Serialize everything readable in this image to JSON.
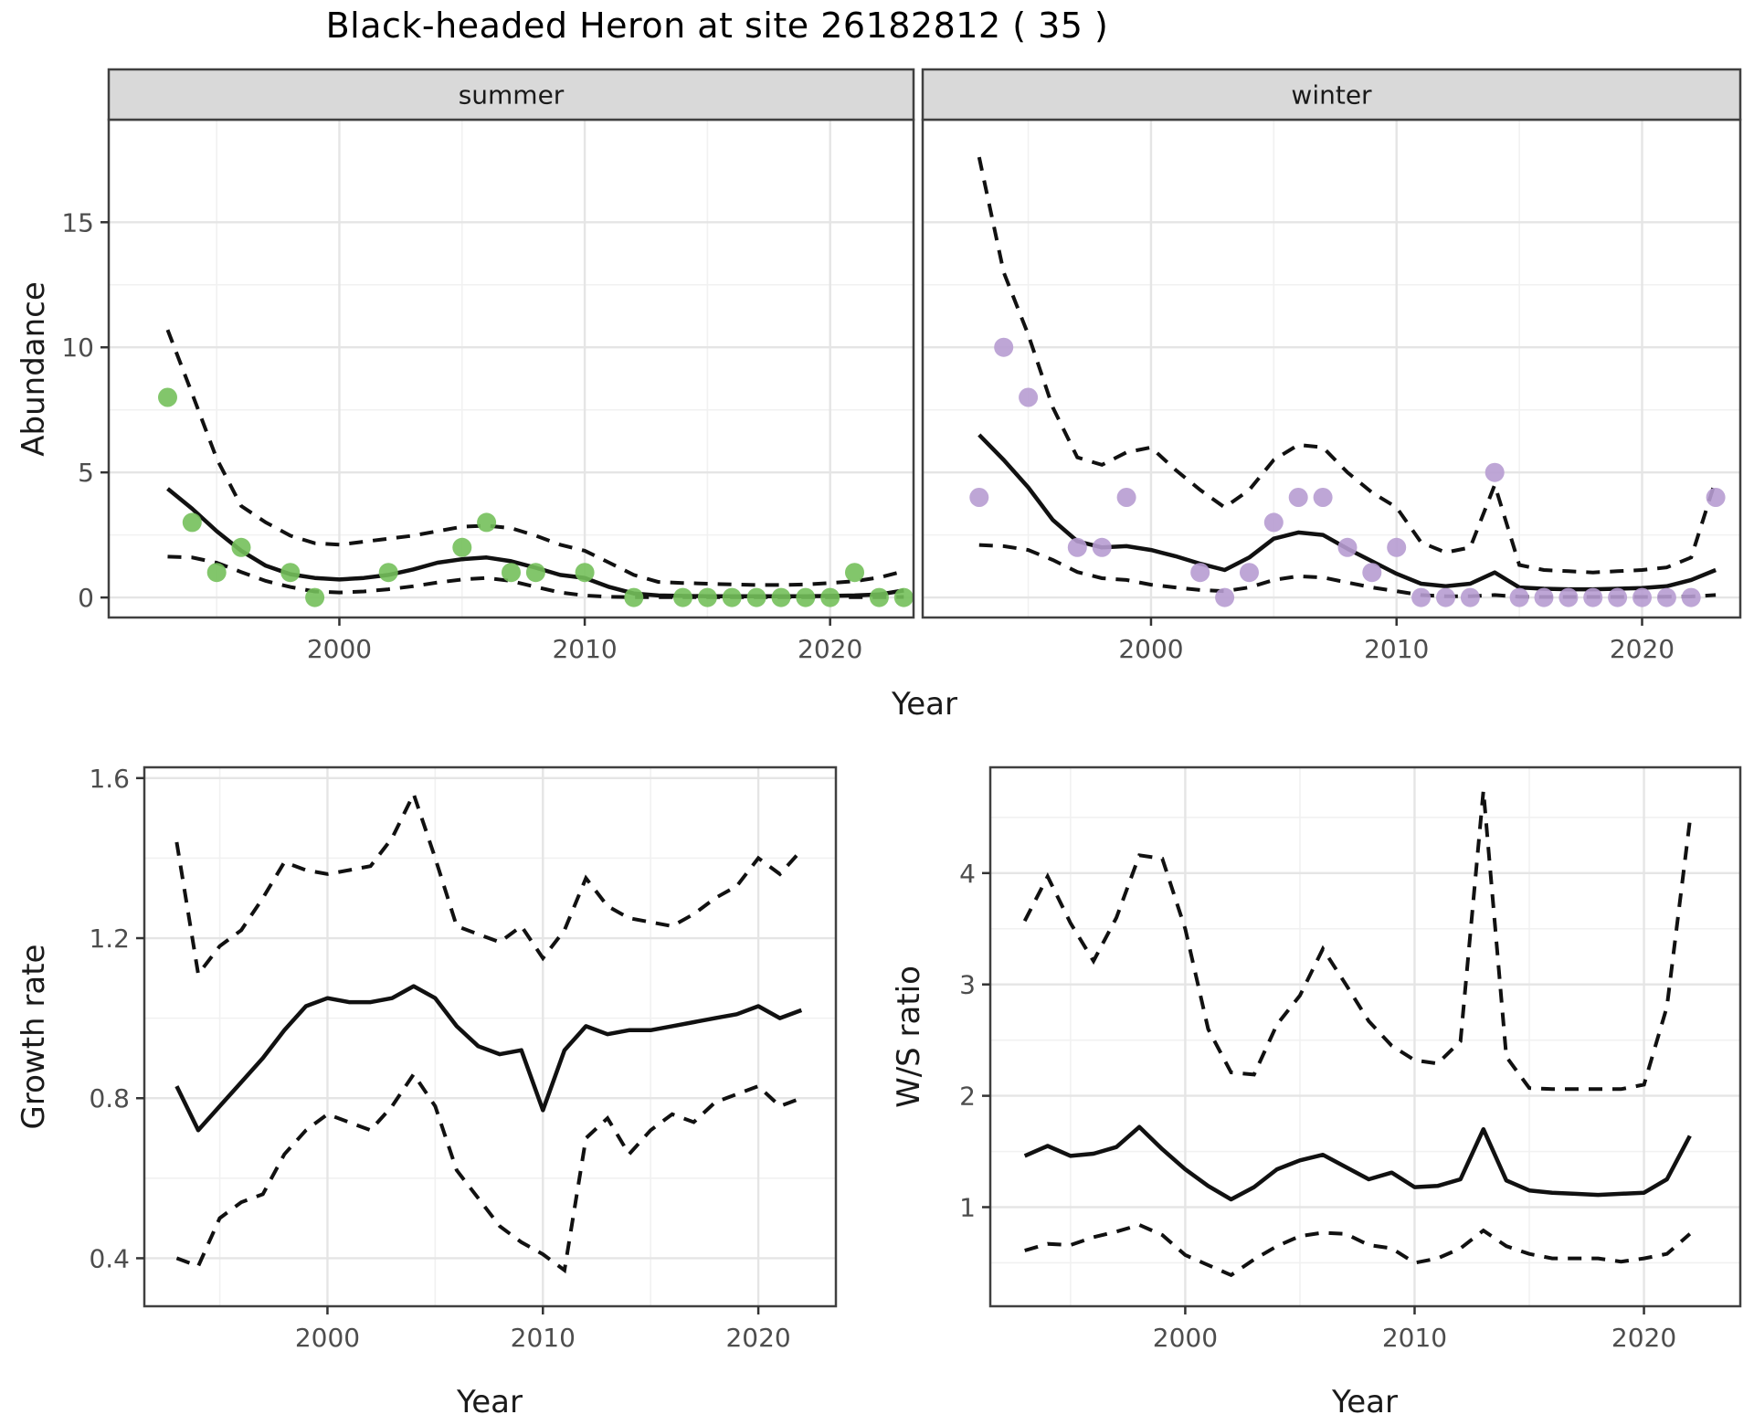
{
  "title": "Black-headed Heron at site 26182812 ( 35 )",
  "colors": {
    "line": "#111111",
    "grid_major": "#e5e5e5",
    "grid_minor": "#f1f1f1",
    "panel_border": "#404040",
    "strip_fill": "#d9d9d9",
    "axis_text": "#4d4d4d",
    "title_text": "#000000",
    "summer_point": "#74c05b",
    "winter_point": "#b79cd2"
  },
  "chart_data": [
    {
      "id": "abundance-summer",
      "type": "line",
      "facet_label": "summer",
      "xlabel": "Year",
      "ylabel": "Abundance",
      "xlim": [
        1990.6,
        2023.4
      ],
      "ylim": [
        -0.8,
        19.1
      ],
      "x_ticks": [
        2000,
        2010,
        2020
      ],
      "x_minor": [
        1995,
        2005,
        2015
      ],
      "y_ticks": [
        0,
        5,
        10,
        15
      ],
      "y_minor": [
        2.5,
        7.5,
        12.5
      ],
      "point_color": "#74c05b",
      "x": [
        1993,
        1994,
        1995,
        1996,
        1997,
        1998,
        1999,
        2000,
        2001,
        2002,
        2003,
        2004,
        2005,
        2006,
        2007,
        2008,
        2009,
        2010,
        2011,
        2012,
        2013,
        2014,
        2015,
        2016,
        2017,
        2018,
        2019,
        2020,
        2021,
        2022,
        2023
      ],
      "fit": [
        4.35,
        3.55,
        2.65,
        1.87,
        1.27,
        0.93,
        0.78,
        0.72,
        0.78,
        0.9,
        1.12,
        1.39,
        1.53,
        1.6,
        1.45,
        1.19,
        0.9,
        0.78,
        0.42,
        0.16,
        0.08,
        0.06,
        0.05,
        0.05,
        0.05,
        0.05,
        0.05,
        0.06,
        0.08,
        0.12,
        0.28
      ],
      "ci_upper": [
        10.7,
        8.15,
        5.55,
        3.66,
        3.0,
        2.47,
        2.17,
        2.11,
        2.23,
        2.35,
        2.47,
        2.65,
        2.83,
        2.87,
        2.77,
        2.47,
        2.11,
        1.87,
        1.39,
        0.9,
        0.62,
        0.58,
        0.55,
        0.52,
        0.5,
        0.5,
        0.52,
        0.58,
        0.65,
        0.8,
        1.05
      ],
      "ci_lower": [
        1.63,
        1.6,
        1.39,
        1.02,
        0.66,
        0.42,
        0.24,
        0.2,
        0.24,
        0.33,
        0.45,
        0.6,
        0.72,
        0.78,
        0.66,
        0.42,
        0.2,
        0.08,
        0.03,
        0.01,
        0.01,
        0.01,
        0.01,
        0.01,
        0.01,
        0.01,
        0.01,
        0.01,
        0.01,
        0.01,
        0.02
      ],
      "observed": [
        8,
        3,
        1,
        2,
        null,
        1,
        0,
        null,
        null,
        1,
        null,
        null,
        2,
        3,
        1,
        1,
        null,
        1,
        null,
        0,
        null,
        0,
        0,
        0,
        0,
        0,
        0,
        0,
        1,
        0,
        0
      ]
    },
    {
      "id": "abundance-winter",
      "type": "line",
      "facet_label": "winter",
      "xlabel": "Year",
      "ylabel": "Abundance",
      "xlim": [
        1990.7,
        2024.0
      ],
      "ylim": [
        -0.8,
        19.1
      ],
      "x_ticks": [
        2000,
        2010,
        2020
      ],
      "x_minor": [
        1995,
        2005,
        2015
      ],
      "y_ticks": [
        0,
        5,
        10,
        15
      ],
      "y_minor": [
        2.5,
        7.5,
        12.5
      ],
      "point_color": "#b79cd2",
      "x": [
        1993,
        1994,
        1995,
        1996,
        1997,
        1998,
        1999,
        2000,
        2001,
        2002,
        2003,
        2004,
        2005,
        2006,
        2007,
        2008,
        2009,
        2010,
        2011,
        2012,
        2013,
        2014,
        2015,
        2016,
        2017,
        2018,
        2019,
        2020,
        2021,
        2022,
        2023
      ],
      "fit": [
        6.5,
        5.5,
        4.4,
        3.1,
        2.25,
        2.0,
        2.05,
        1.9,
        1.65,
        1.35,
        1.1,
        1.6,
        2.35,
        2.6,
        2.5,
        1.95,
        1.45,
        0.95,
        0.55,
        0.45,
        0.55,
        1.0,
        0.4,
        0.35,
        0.33,
        0.33,
        0.35,
        0.38,
        0.45,
        0.7,
        1.1
      ],
      "ci_upper": [
        17.6,
        13.0,
        10.5,
        7.6,
        5.6,
        5.3,
        5.8,
        6.0,
        5.1,
        4.3,
        3.6,
        4.3,
        5.5,
        6.1,
        6.0,
        5.0,
        4.2,
        3.6,
        2.2,
        1.8,
        2.0,
        4.5,
        1.3,
        1.1,
        1.05,
        1.0,
        1.05,
        1.1,
        1.2,
        1.6,
        4.7
      ],
      "ci_lower": [
        2.1,
        2.05,
        1.9,
        1.5,
        1.02,
        0.77,
        0.7,
        0.51,
        0.4,
        0.3,
        0.25,
        0.4,
        0.7,
        0.85,
        0.8,
        0.6,
        0.4,
        0.25,
        0.1,
        0.05,
        0.05,
        0.1,
        0.03,
        0.02,
        0.02,
        0.02,
        0.02,
        0.02,
        0.03,
        0.04,
        0.1
      ],
      "observed": [
        4,
        10,
        8,
        null,
        2,
        2,
        4,
        null,
        null,
        1,
        0,
        1,
        3,
        4,
        4,
        2,
        1,
        2,
        0,
        0,
        0,
        5,
        0,
        0,
        0,
        0,
        0,
        0,
        0,
        0,
        4
      ]
    },
    {
      "id": "growth-rate",
      "type": "line",
      "facet_label": null,
      "xlabel": "Year",
      "ylabel": "Growth rate",
      "xlim": [
        1991.5,
        2023.6
      ],
      "ylim": [
        0.28,
        1.627
      ],
      "x_ticks": [
        2000,
        2010,
        2020
      ],
      "x_minor": [
        1995,
        2005,
        2015
      ],
      "y_ticks": [
        0.4,
        0.8,
        1.2,
        1.6
      ],
      "y_minor": [
        0.6,
        1.0,
        1.4
      ],
      "point_color": null,
      "x": [
        1993,
        1994,
        1995,
        1996,
        1997,
        1998,
        1999,
        2000,
        2001,
        2002,
        2003,
        2004,
        2005,
        2006,
        2007,
        2008,
        2009,
        2010,
        2011,
        2012,
        2013,
        2014,
        2015,
        2016,
        2017,
        2018,
        2019,
        2020,
        2021,
        2022
      ],
      "fit": [
        0.83,
        0.72,
        0.78,
        0.84,
        0.9,
        0.97,
        1.03,
        1.05,
        1.04,
        1.04,
        1.05,
        1.08,
        1.05,
        0.98,
        0.93,
        0.91,
        0.92,
        0.77,
        0.92,
        0.98,
        0.96,
        0.97,
        0.97,
        0.98,
        0.99,
        1.0,
        1.01,
        1.03,
        1.0,
        1.02
      ],
      "ci_upper": [
        1.44,
        1.11,
        1.18,
        1.22,
        1.3,
        1.39,
        1.37,
        1.36,
        1.37,
        1.38,
        1.45,
        1.56,
        1.4,
        1.23,
        1.21,
        1.19,
        1.23,
        1.15,
        1.22,
        1.35,
        1.28,
        1.25,
        1.24,
        1.23,
        1.26,
        1.3,
        1.33,
        1.4,
        1.36,
        1.42
      ],
      "ci_lower": [
        0.4,
        0.38,
        0.5,
        0.54,
        0.56,
        0.66,
        0.72,
        0.76,
        0.74,
        0.72,
        0.78,
        0.86,
        0.78,
        0.62,
        0.55,
        0.48,
        0.44,
        0.41,
        0.37,
        0.7,
        0.75,
        0.66,
        0.72,
        0.76,
        0.74,
        0.79,
        0.81,
        0.83,
        0.78,
        0.8
      ],
      "observed": null
    },
    {
      "id": "ws-ratio",
      "type": "line",
      "facet_label": null,
      "xlabel": "Year",
      "ylabel": "W/S ratio",
      "xlim": [
        1991.5,
        2024.2
      ],
      "ylim": [
        0.11,
        4.95
      ],
      "x_ticks": [
        2000,
        2010,
        2020
      ],
      "x_minor": [
        1995,
        2005,
        2015
      ],
      "y_ticks": [
        1,
        2,
        3,
        4
      ],
      "y_minor": [
        0.5,
        1.5,
        2.5,
        3.5,
        4.5
      ],
      "point_color": null,
      "x": [
        1993,
        1994,
        1995,
        1996,
        1997,
        1998,
        1999,
        2000,
        2001,
        2002,
        2003,
        2004,
        2005,
        2006,
        2007,
        2008,
        2009,
        2010,
        2011,
        2012,
        2013,
        2014,
        2015,
        2016,
        2017,
        2018,
        2019,
        2020,
        2021,
        2022
      ],
      "fit": [
        1.46,
        1.55,
        1.46,
        1.48,
        1.54,
        1.72,
        1.52,
        1.34,
        1.19,
        1.07,
        1.18,
        1.34,
        1.42,
        1.47,
        1.36,
        1.25,
        1.31,
        1.18,
        1.19,
        1.25,
        1.7,
        1.24,
        1.15,
        1.13,
        1.12,
        1.11,
        1.12,
        1.13,
        1.25,
        1.64
      ],
      "ci_upper": [
        3.57,
        3.97,
        3.55,
        3.21,
        3.6,
        4.16,
        4.13,
        3.5,
        2.6,
        2.21,
        2.19,
        2.64,
        2.9,
        3.32,
        3.0,
        2.67,
        2.45,
        2.32,
        2.29,
        2.49,
        4.74,
        2.35,
        2.07,
        2.06,
        2.06,
        2.06,
        2.06,
        2.1,
        2.8,
        4.47
      ],
      "ci_lower": [
        0.61,
        0.67,
        0.66,
        0.73,
        0.78,
        0.84,
        0.75,
        0.57,
        0.48,
        0.39,
        0.53,
        0.65,
        0.74,
        0.77,
        0.76,
        0.66,
        0.63,
        0.5,
        0.54,
        0.63,
        0.79,
        0.65,
        0.58,
        0.54,
        0.54,
        0.54,
        0.51,
        0.54,
        0.58,
        0.76
      ],
      "observed": null
    }
  ]
}
